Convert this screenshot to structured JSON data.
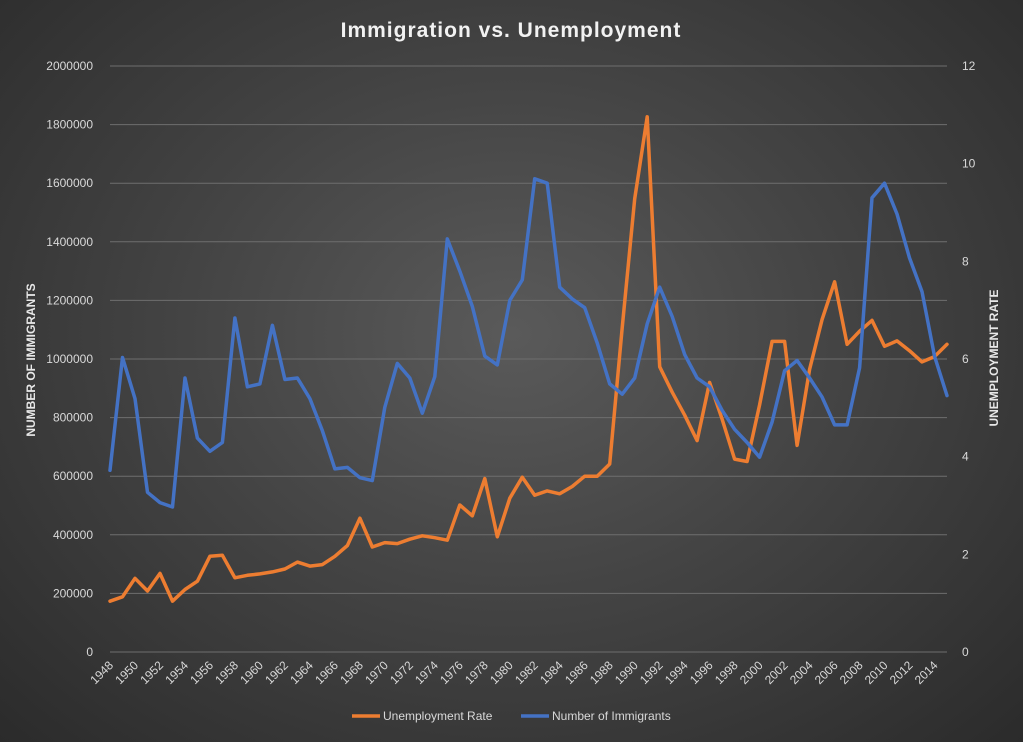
{
  "chart_data": {
    "type": "line",
    "title": "Immigration vs. Unemployment",
    "y_left_label": "NUMBER OF IMMIGRANTS",
    "y_right_label": "UNEMPLOYMENT RATE",
    "y_left_range": [
      0,
      2000000
    ],
    "y_left_ticks": [
      0,
      200000,
      400000,
      600000,
      800000,
      1000000,
      1200000,
      1400000,
      1600000,
      1800000,
      2000000
    ],
    "y_right_range": [
      0,
      12
    ],
    "y_right_ticks": [
      0,
      2,
      4,
      6,
      8,
      10,
      12
    ],
    "x": [
      1948,
      1949,
      1950,
      1951,
      1952,
      1953,
      1954,
      1955,
      1956,
      1957,
      1958,
      1959,
      1960,
      1961,
      1962,
      1963,
      1964,
      1965,
      1966,
      1967,
      1968,
      1969,
      1970,
      1971,
      1972,
      1973,
      1974,
      1975,
      1976,
      1977,
      1978,
      1979,
      1980,
      1981,
      1982,
      1983,
      1984,
      1985,
      1986,
      1987,
      1988,
      1989,
      1990,
      1991,
      1992,
      1993,
      1994,
      1995,
      1996,
      1997,
      1998,
      1999,
      2000,
      2001,
      2002,
      2003,
      2004,
      2005,
      2006,
      2007,
      2008,
      2009,
      2010,
      2011,
      2012,
      2013,
      2014,
      2015
    ],
    "x_tick_labels": [
      "1948",
      "1950",
      "1952",
      "1954",
      "1956",
      "1958",
      "1960",
      "1962",
      "1964",
      "1966",
      "1968",
      "1970",
      "1972",
      "1974",
      "1976",
      "1978",
      "1980",
      "1982",
      "1984",
      "1986",
      "1988",
      "1990",
      "1992",
      "1994",
      "1996",
      "1998",
      "2000",
      "2002",
      "2004",
      "2006",
      "2008",
      "2010",
      "2012",
      "2014"
    ],
    "grid": true,
    "legend_position": "bottom",
    "series": [
      {
        "name": "Unemployment Rate",
        "axis": "right",
        "color": "#ED7D31",
        "values": [
          1.04,
          1.13,
          1.51,
          1.25,
          1.61,
          1.04,
          1.28,
          1.45,
          1.96,
          1.98,
          1.52,
          1.57,
          1.6,
          1.64,
          1.7,
          1.84,
          1.76,
          1.79,
          1.96,
          2.18,
          2.74,
          2.15,
          2.24,
          2.22,
          2.31,
          2.38,
          2.34,
          2.29,
          3.01,
          2.79,
          3.55,
          2.36,
          3.15,
          3.58,
          3.21,
          3.3,
          3.24,
          3.39,
          3.6,
          3.6,
          3.85,
          6.64,
          9.28,
          10.96,
          5.84,
          5.32,
          4.85,
          4.33,
          5.52,
          4.77,
          3.95,
          3.9,
          5.06,
          6.36,
          6.36,
          4.23,
          5.79,
          6.81,
          7.58,
          6.3,
          6.57,
          6.79,
          6.26,
          6.37,
          6.17,
          5.94,
          6.05,
          6.3
        ]
      },
      {
        "name": "Number of Immigrants",
        "axis": "left",
        "color": "#4472C4",
        "values": [
          620000,
          1005000,
          865000,
          545000,
          510000,
          495000,
          935000,
          730000,
          685000,
          715000,
          1140000,
          905000,
          915000,
          1115000,
          930000,
          935000,
          865000,
          755000,
          625000,
          630000,
          595000,
          585000,
          835000,
          985000,
          935000,
          815000,
          940000,
          1410000,
          1300000,
          1180000,
          1010000,
          980000,
          1200000,
          1270000,
          1615000,
          1600000,
          1245000,
          1205000,
          1175000,
          1055000,
          915000,
          880000,
          935000,
          1120000,
          1245000,
          1145000,
          1015000,
          935000,
          905000,
          825000,
          760000,
          715000,
          665000,
          785000,
          960000,
          995000,
          935000,
          870000,
          775000,
          775000,
          970000,
          1550000,
          1600000,
          1495000,
          1345000,
          1230000,
          1010000,
          875000
        ]
      }
    ]
  }
}
